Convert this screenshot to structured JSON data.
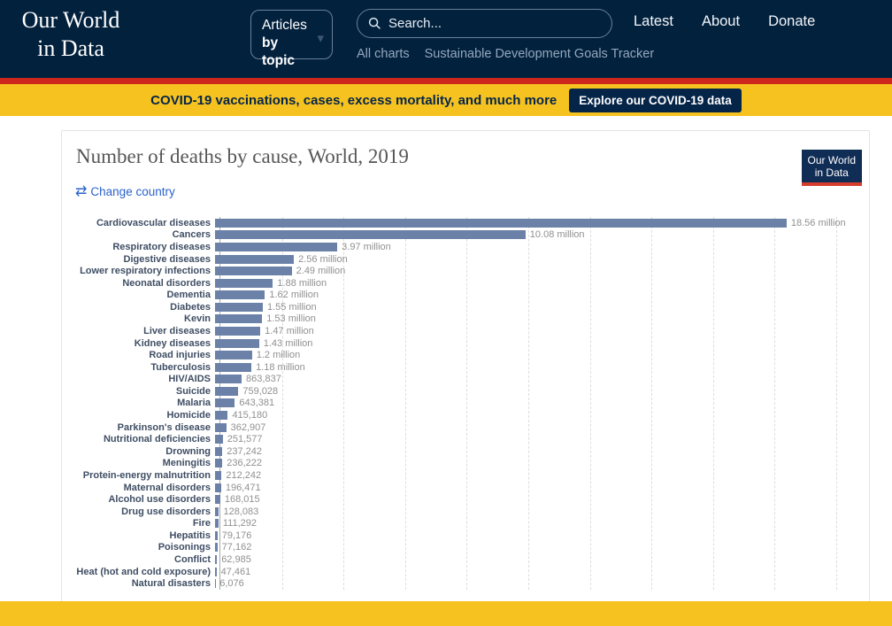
{
  "header": {
    "logo_line1": "Our World",
    "logo_line2": "in Data",
    "articles_button": {
      "line1": "Articles",
      "line2": "by topic",
      "caret": "▾"
    },
    "search_placeholder": "Search...",
    "nav_links": [
      "Latest",
      "About",
      "Donate"
    ],
    "subnav_links": [
      "All charts",
      "Sustainable Development Goals Tracker"
    ]
  },
  "covid_banner": {
    "text": "COVID-19 vaccinations, cases, excess mortality, and much more",
    "button_label": "Explore our COVID-19 data"
  },
  "card": {
    "title": "Number of deaths by cause, World, 2019",
    "change_country_label": "Change country",
    "change_country_icon": "⇄",
    "badge_line1": "Our World",
    "badge_line2": "in Data"
  },
  "chart_data": {
    "type": "bar",
    "orientation": "horizontal",
    "title": "Number of deaths by cause, World, 2019",
    "xlabel": "",
    "ylabel": "",
    "xlim": [
      0,
      20000000
    ],
    "gridline_interval": 2000000,
    "grid": "dashed-vertical",
    "legend": "none",
    "bar_color": "#6c81a8",
    "categories": [
      "Cardiovascular diseases",
      "Cancers",
      "Respiratory diseases",
      "Digestive diseases",
      "Lower respiratory infections",
      "Neonatal disorders",
      "Dementia",
      "Diabetes",
      "Kevin",
      "Liver diseases",
      "Kidney diseases",
      "Road injuries",
      "Tuberculosis",
      "HIV/AIDS",
      "Suicide",
      "Malaria",
      "Homicide",
      "Parkinson's disease",
      "Nutritional deficiencies",
      "Drowning",
      "Meningitis",
      "Protein-energy malnutrition",
      "Maternal disorders",
      "Alcohol use disorders",
      "Drug use disorders",
      "Fire",
      "Hepatitis",
      "Poisonings",
      "Conflict",
      "Heat (hot and cold exposure)",
      "Natural disasters"
    ],
    "values": [
      18560000,
      10080000,
      3970000,
      2560000,
      2490000,
      1880000,
      1620000,
      1550000,
      1530000,
      1470000,
      1430000,
      1200000,
      1180000,
      863837,
      759028,
      643381,
      415180,
      362907,
      251577,
      237242,
      236222,
      212242,
      196471,
      168015,
      128083,
      111292,
      79176,
      77162,
      62985,
      47461,
      6076
    ],
    "value_labels": [
      "18.56 million",
      "10.08 million",
      "3.97 million",
      "2.56 million",
      "2.49 million",
      "1.88 million",
      "1.62 million",
      "1.55 million",
      "1.53 million",
      "1.47 million",
      "1.43 million",
      "1.2 million",
      "1.18 million",
      "863,837",
      "759,028",
      "643,381",
      "415,180",
      "362,907",
      "251,577",
      "237,242",
      "236,222",
      "212,242",
      "196,471",
      "168,015",
      "128,083",
      "111,292",
      "79,176",
      "77,162",
      "62,985",
      "47,461",
      "6,076"
    ]
  },
  "colors": {
    "header_navy": "#02213d",
    "red_strip": "#cd261d",
    "banner_yellow": "#f6c21f",
    "banner_navy": "#042448",
    "link_blue": "#2962cc",
    "bar_blue": "#6c81a8",
    "badge_navy": "#102d56",
    "badge_red": "#d73c2c"
  }
}
